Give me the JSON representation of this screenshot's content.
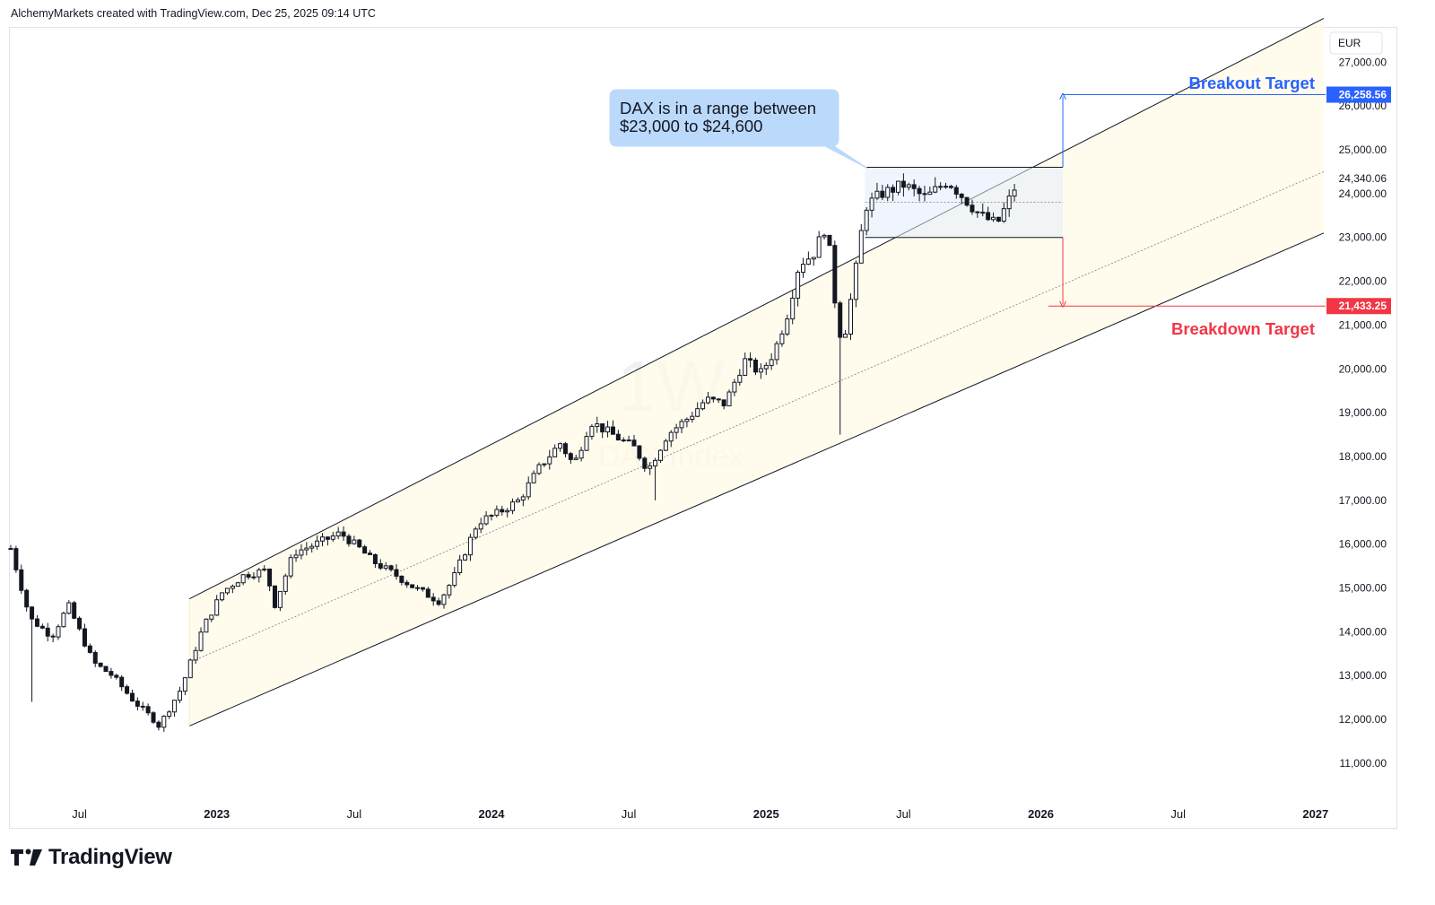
{
  "header": {
    "attribution": "AlchemyMarkets created with TradingView.com, Dec 25, 2025 09:14 UTC"
  },
  "footer": {
    "brand": "TradingView",
    "logo_icon": "tradingview-logo-icon"
  },
  "chart_data": {
    "type": "candlestick",
    "watermark": {
      "interval": "1W",
      "symbol": "DAX Index"
    },
    "currency": "EUR",
    "y_ticks": [
      "27,000.00",
      "26,000.00",
      "25,000.00",
      "24,000.00",
      "23,000.00",
      "22,000.00",
      "21,000.00",
      "20,000.00",
      "19,000.00",
      "18,000.00",
      "17,000.00",
      "16,000.00",
      "15,000.00",
      "14,000.00",
      "13,000.00",
      "12,000.00",
      "11,000.00"
    ],
    "y_tick_values": [
      27000,
      26000,
      25000,
      24000,
      23000,
      22000,
      21000,
      20000,
      19000,
      18000,
      17000,
      16000,
      15000,
      14000,
      13000,
      12000,
      11000
    ],
    "ylim": [
      10200,
      27600
    ],
    "x_ticks": [
      {
        "label": "Jul",
        "t": 2022.5,
        "bold": false
      },
      {
        "label": "2023",
        "t": 2023.0,
        "bold": true
      },
      {
        "label": "Jul",
        "t": 2023.5,
        "bold": false
      },
      {
        "label": "2024",
        "t": 2024.0,
        "bold": true
      },
      {
        "label": "Jul",
        "t": 2024.5,
        "bold": false
      },
      {
        "label": "2025",
        "t": 2025.0,
        "bold": true
      },
      {
        "label": "Jul",
        "t": 2025.5,
        "bold": false
      },
      {
        "label": "2026",
        "t": 2026.0,
        "bold": true
      },
      {
        "label": "Jul",
        "t": 2026.5,
        "bold": false
      },
      {
        "label": "2027",
        "t": 2027.0,
        "bold": true
      }
    ],
    "xlim": [
      2022.25,
      2027.03
    ],
    "price_labels": [
      {
        "text": "26,258.56",
        "value": 26258.56,
        "color": "#2962ff",
        "boxed": true
      },
      {
        "text": "24,340.06",
        "value": 24340.06,
        "color": "#131722",
        "boxed": false
      },
      {
        "text": "21,433.25",
        "value": 21433.25,
        "color": "#f23645",
        "boxed": true
      }
    ],
    "annotation": {
      "line1": "DAX is in a range between",
      "line2": "$23,000 to $24,600"
    },
    "targets": {
      "breakout": {
        "label": "Breakout Target",
        "value": 26258.56,
        "color": "#2962ff"
      },
      "breakdown": {
        "label": "Breakdown Target",
        "value": 21433.25,
        "color": "#f23645"
      }
    },
    "range_box": {
      "t0": 2025.36,
      "t1": 2026.08,
      "low": 23000,
      "high": 24600,
      "mid": 23800
    },
    "channel": {
      "t0": 2022.9,
      "t1": 2027.03,
      "upper": [
        14750,
        28000
      ],
      "mid": [
        13300,
        24500
      ],
      "lower": [
        11850,
        23100
      ]
    },
    "anchors": [
      [
        2022.25,
        15900
      ],
      [
        2022.32,
        14300
      ],
      [
        2022.4,
        13900
      ],
      [
        2022.46,
        14600
      ],
      [
        2022.55,
        13300
      ],
      [
        2022.62,
        13000
      ],
      [
        2022.7,
        12400
      ],
      [
        2022.77,
        12000
      ],
      [
        2022.79,
        11850
      ],
      [
        2022.87,
        12700
      ],
      [
        2022.95,
        14100
      ],
      [
        2023.02,
        14900
      ],
      [
        2023.1,
        15300
      ],
      [
        2023.18,
        15400
      ],
      [
        2023.21,
        14600
      ],
      [
        2023.28,
        15800
      ],
      [
        2023.36,
        16000
      ],
      [
        2023.45,
        16250
      ],
      [
        2023.52,
        15900
      ],
      [
        2023.57,
        15600
      ],
      [
        2023.65,
        15300
      ],
      [
        2023.72,
        15000
      ],
      [
        2023.81,
        14700
      ],
      [
        2023.86,
        15200
      ],
      [
        2023.95,
        16500
      ],
      [
        2024.02,
        16700
      ],
      [
        2024.1,
        17000
      ],
      [
        2024.18,
        17800
      ],
      [
        2024.25,
        18300
      ],
      [
        2024.3,
        17800
      ],
      [
        2024.36,
        18800
      ],
      [
        2024.44,
        18500
      ],
      [
        2024.52,
        18200
      ],
      [
        2024.57,
        17700
      ],
      [
        2024.64,
        18500
      ],
      [
        2024.72,
        18900
      ],
      [
        2024.78,
        19300
      ],
      [
        2024.85,
        19200
      ],
      [
        2024.92,
        20200
      ],
      [
        2024.98,
        19900
      ],
      [
        2025.03,
        20400
      ],
      [
        2025.08,
        21300
      ],
      [
        2025.12,
        22400
      ],
      [
        2025.17,
        22600
      ],
      [
        2025.22,
        23300
      ],
      [
        2025.26,
        21000
      ],
      [
        2025.28,
        20600
      ],
      [
        2025.32,
        22000
      ],
      [
        2025.36,
        23700
      ],
      [
        2025.42,
        24000
      ],
      [
        2025.5,
        24200
      ],
      [
        2025.58,
        23900
      ],
      [
        2025.66,
        24300
      ],
      [
        2025.72,
        23900
      ],
      [
        2025.78,
        23500
      ],
      [
        2025.84,
        23300
      ],
      [
        2025.88,
        23800
      ],
      [
        2025.92,
        24340
      ]
    ]
  }
}
